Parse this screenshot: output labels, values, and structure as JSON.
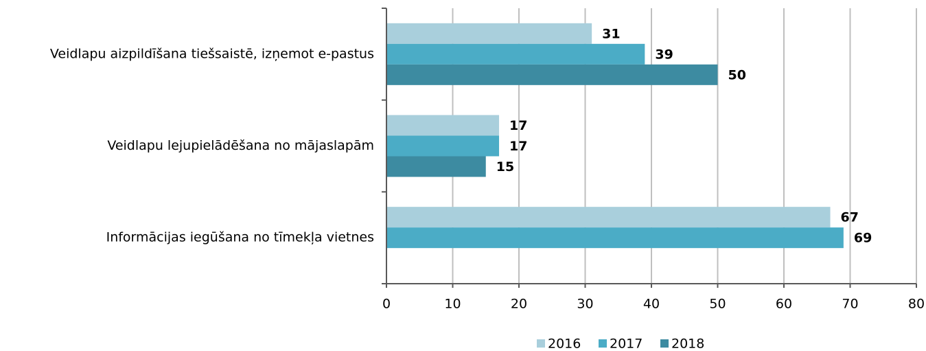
{
  "chart_data": {
    "type": "hbar",
    "categories": [
      "Veidlapu aizpildīšana tiešsaistē, izņemot e-pastus",
      "Veidlapu lejupielādēšana no mājaslapām",
      "Informācijas iegūšana no tīmekļa vietnes"
    ],
    "series": [
      {
        "name": "2016",
        "color": "#a9cfdc",
        "values": [
          31,
          17,
          67
        ]
      },
      {
        "name": "2017",
        "color": "#4bacc6",
        "values": [
          39,
          17,
          69
        ]
      },
      {
        "name": "2018",
        "color": "#3d8ba1",
        "values": [
          50,
          15,
          null
        ]
      }
    ],
    "xlim": [
      0,
      80
    ],
    "xticks": [
      0,
      10,
      20,
      30,
      40,
      50,
      60,
      70,
      80
    ],
    "grid": true,
    "legend": "bottom"
  }
}
